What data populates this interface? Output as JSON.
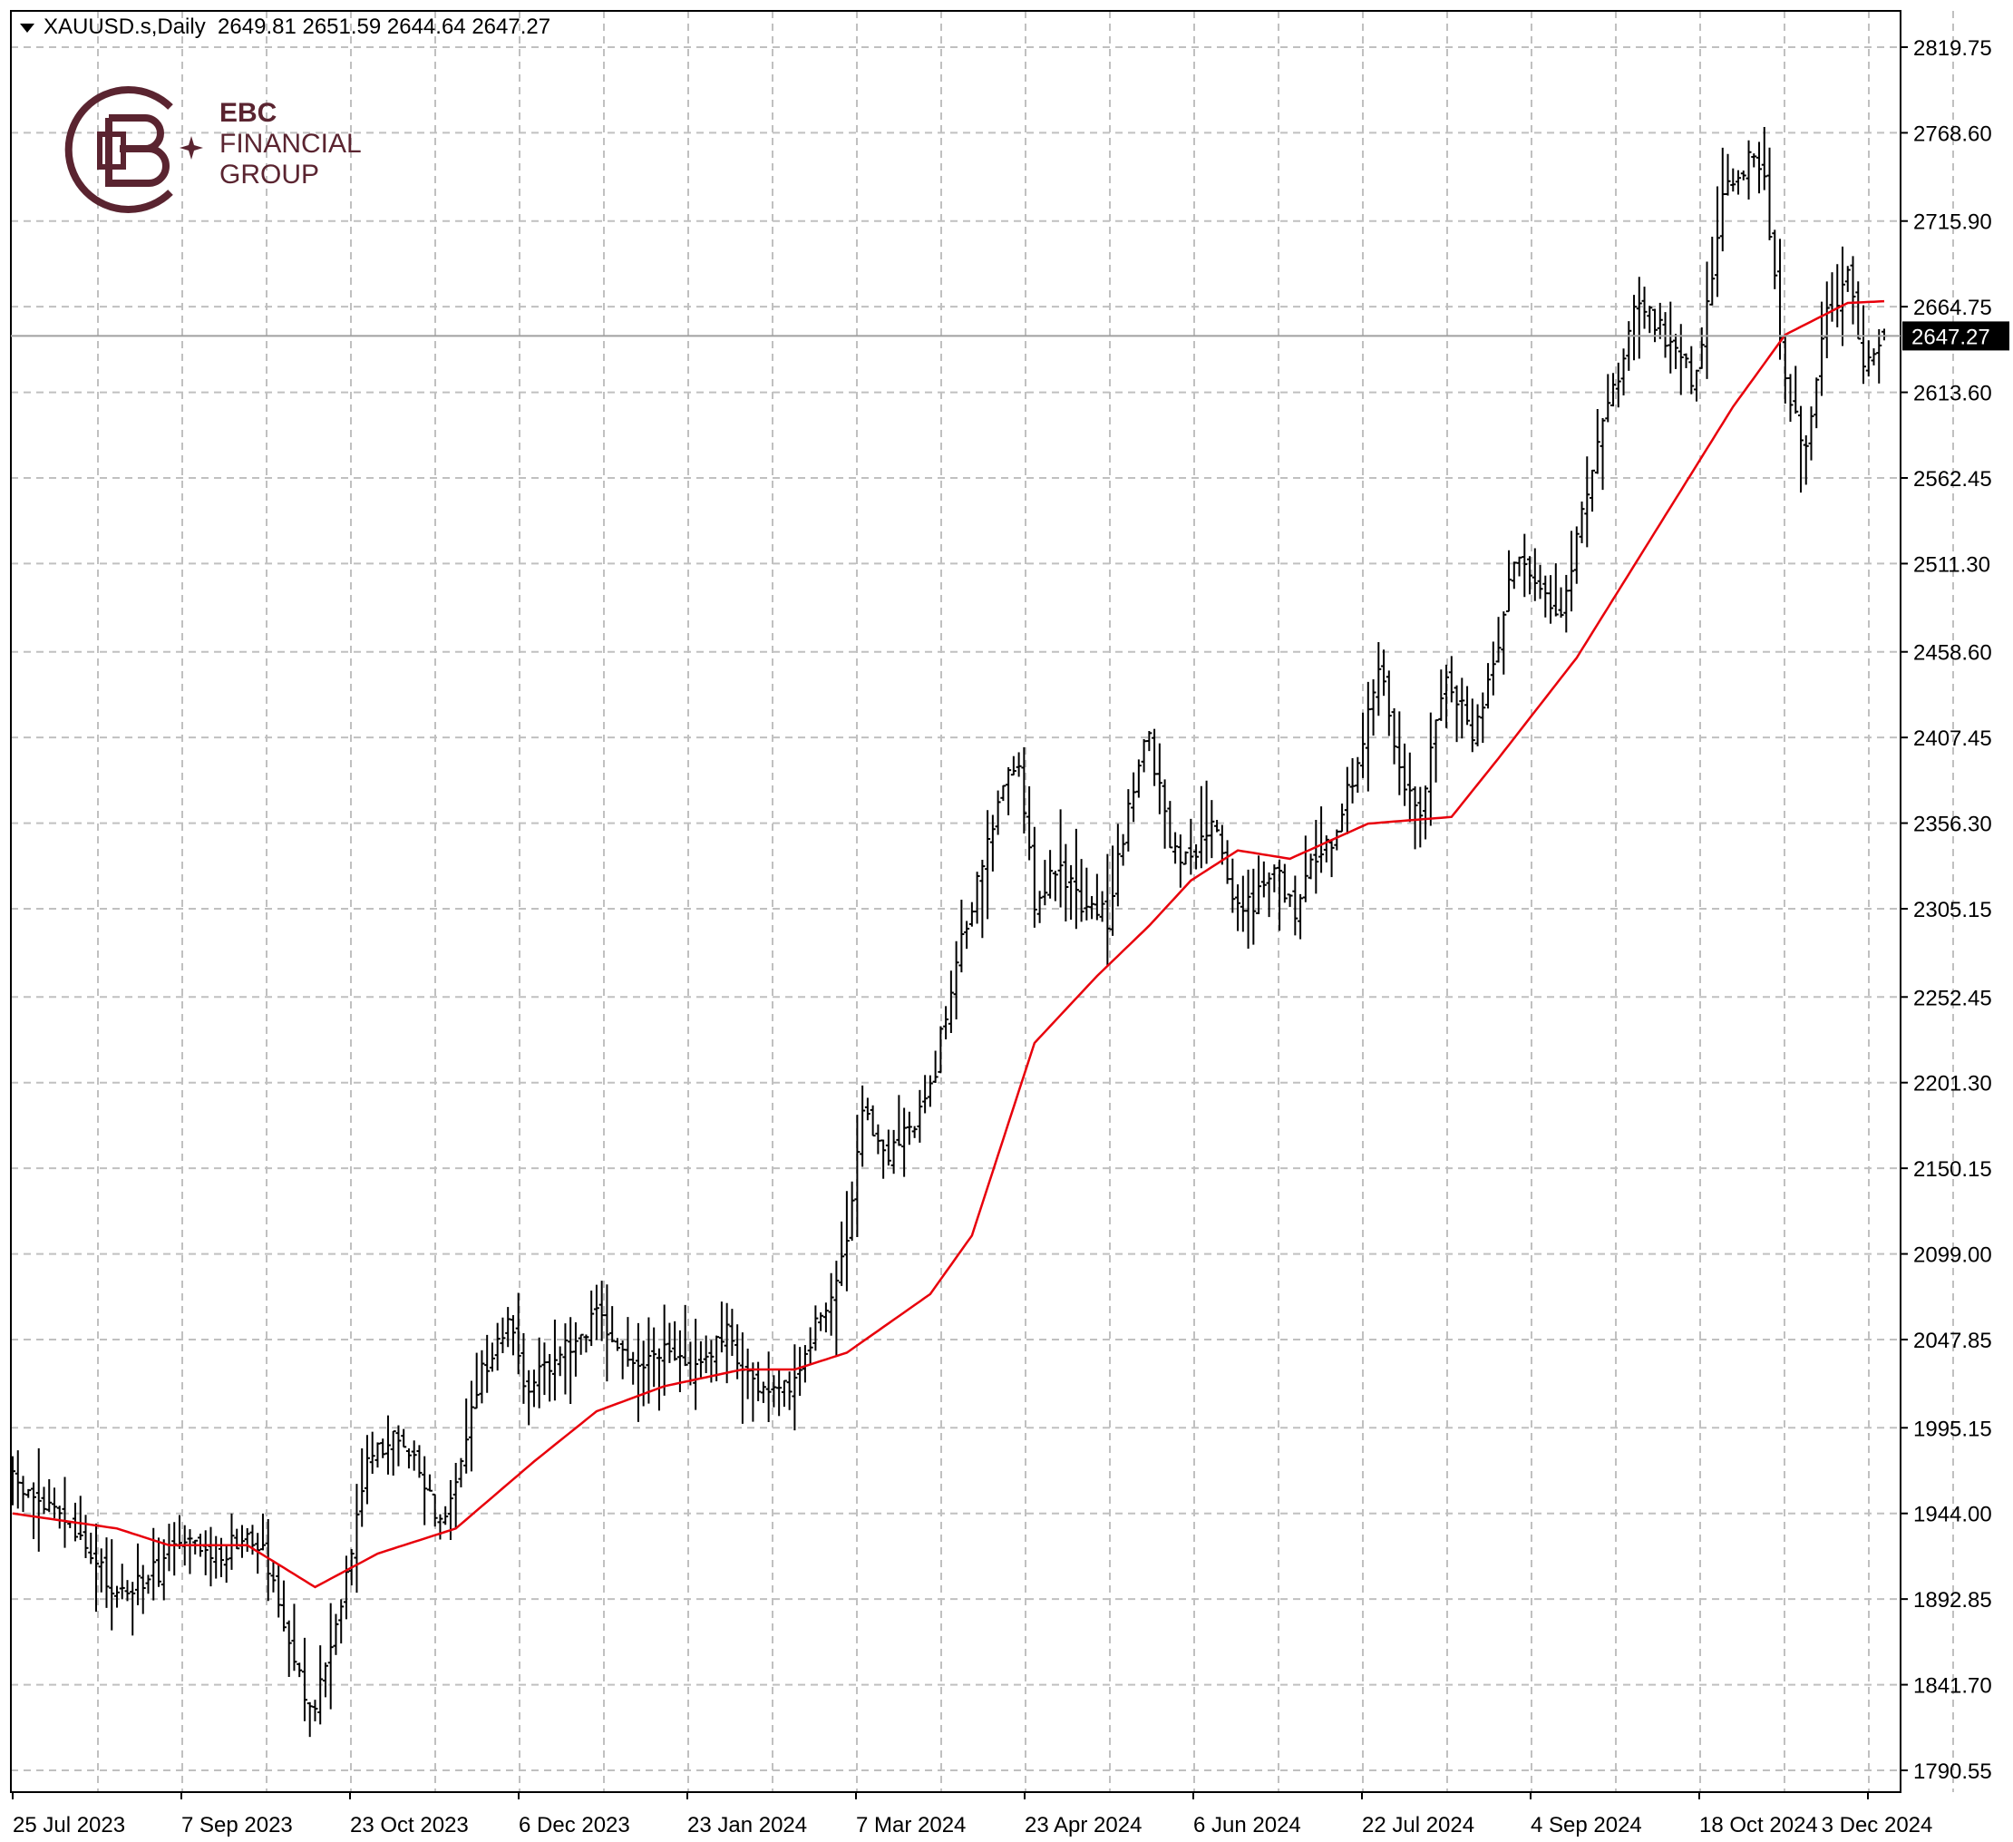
{
  "header": {
    "symbol": "XAUUSD.s,Daily",
    "ohlc": "2649.81 2651.59 2644.64 2647.27"
  },
  "logo": {
    "line1": "EBC",
    "line2": "FINANCIAL",
    "line3": "GROUP",
    "color": "#5a2430"
  },
  "colors": {
    "bars": "#000000",
    "ma": "#e8000b",
    "grid": "#c0c0c0",
    "price_tag_bg": "#000000",
    "price_tag_fg": "#ffffff"
  },
  "chart_data": {
    "type": "ohlc",
    "symbol": "XAUUSD.s",
    "timeframe": "Daily",
    "grid": true,
    "ylim": [
      1790.55,
      2819.75
    ],
    "y_ticks": [
      "2819.75",
      "2768.60",
      "2715.90",
      "2664.75",
      "2613.60",
      "2562.45",
      "2511.30",
      "2458.60",
      "2407.45",
      "2356.30",
      "2305.15",
      "2252.45",
      "2201.30",
      "2150.15",
      "2099.00",
      "2047.85",
      "1995.15",
      "1944.00",
      "1892.85",
      "1841.70",
      "1790.55"
    ],
    "x_ticks": [
      "25 Jul 2023",
      "7 Sep 2023",
      "23 Oct 2023",
      "6 Dec 2023",
      "23 Jan 2024",
      "7 Mar 2024",
      "23 Apr 2024",
      "6 Jun 2024",
      "22 Jul 2024",
      "4 Sep 2024",
      "18 Oct 2024",
      "3 Dec 2024"
    ],
    "current_price": "2647.27",
    "bar_count": 360,
    "price_path": [
      [
        0,
        1963
      ],
      [
        10,
        1940
      ],
      [
        20,
        1895
      ],
      [
        28,
        1910
      ],
      [
        30,
        1925
      ],
      [
        40,
        1920
      ],
      [
        45,
        1935
      ],
      [
        48,
        1925
      ],
      [
        52,
        1880
      ],
      [
        57,
        1822
      ],
      [
        60,
        1850
      ],
      [
        65,
        1925
      ],
      [
        68,
        1980
      ],
      [
        75,
        1990
      ],
      [
        80,
        1955
      ],
      [
        82,
        1940
      ],
      [
        86,
        1975
      ],
      [
        90,
        2030
      ],
      [
        95,
        2060
      ],
      [
        98,
        2020
      ],
      [
        103,
        2035
      ],
      [
        112,
        2060
      ],
      [
        120,
        2030
      ],
      [
        125,
        2040
      ],
      [
        130,
        2030
      ],
      [
        137,
        2050
      ],
      [
        145,
        2010
      ],
      [
        150,
        2025
      ],
      [
        160,
        2100
      ],
      [
        163,
        2180
      ],
      [
        168,
        2160
      ],
      [
        172,
        2175
      ],
      [
        176,
        2195
      ],
      [
        180,
        2260
      ],
      [
        186,
        2330
      ],
      [
        190,
        2380
      ],
      [
        193,
        2395
      ],
      [
        196,
        2310
      ],
      [
        200,
        2330
      ],
      [
        205,
        2310
      ],
      [
        210,
        2300
      ],
      [
        215,
        2380
      ],
      [
        218,
        2410
      ],
      [
        222,
        2340
      ],
      [
        226,
        2330
      ],
      [
        230,
        2360
      ],
      [
        234,
        2310
      ],
      [
        238,
        2310
      ],
      [
        242,
        2330
      ],
      [
        246,
        2305
      ],
      [
        249,
        2330
      ],
      [
        254,
        2350
      ],
      [
        258,
        2395
      ],
      [
        262,
        2455
      ],
      [
        266,
        2390
      ],
      [
        270,
        2360
      ],
      [
        275,
        2450
      ],
      [
        280,
        2405
      ],
      [
        284,
        2450
      ],
      [
        288,
        2515
      ],
      [
        292,
        2505
      ],
      [
        297,
        2480
      ],
      [
        302,
        2555
      ],
      [
        308,
        2625
      ],
      [
        312,
        2670
      ],
      [
        318,
        2640
      ],
      [
        323,
        2620
      ],
      [
        328,
        2730
      ],
      [
        333,
        2755
      ],
      [
        336,
        2740
      ],
      [
        340,
        2620
      ],
      [
        344,
        2580
      ],
      [
        348,
        2660
      ],
      [
        352,
        2680
      ],
      [
        355,
        2635
      ],
      [
        359,
        2647.27
      ]
    ],
    "series": [
      {
        "name": "",
        "type": "ma",
        "points": [
          [
            0,
            1944
          ],
          [
            20,
            1935
          ],
          [
            30,
            1925
          ],
          [
            45,
            1925
          ],
          [
            58,
            1900
          ],
          [
            70,
            1920
          ],
          [
            85,
            1935
          ],
          [
            100,
            1975
          ],
          [
            112,
            2005
          ],
          [
            125,
            2020
          ],
          [
            140,
            2030
          ],
          [
            150,
            2030
          ],
          [
            160,
            2040
          ],
          [
            176,
            2075
          ],
          [
            184,
            2110
          ],
          [
            196,
            2225
          ],
          [
            208,
            2265
          ],
          [
            218,
            2295
          ],
          [
            226,
            2322
          ],
          [
            235,
            2340
          ],
          [
            245,
            2335
          ],
          [
            260,
            2356
          ],
          [
            276,
            2360
          ],
          [
            285,
            2395
          ],
          [
            300,
            2455
          ],
          [
            310,
            2505
          ],
          [
            320,
            2555
          ],
          [
            330,
            2605
          ],
          [
            340,
            2648
          ],
          [
            352,
            2667
          ],
          [
            359,
            2668
          ]
        ]
      }
    ]
  }
}
